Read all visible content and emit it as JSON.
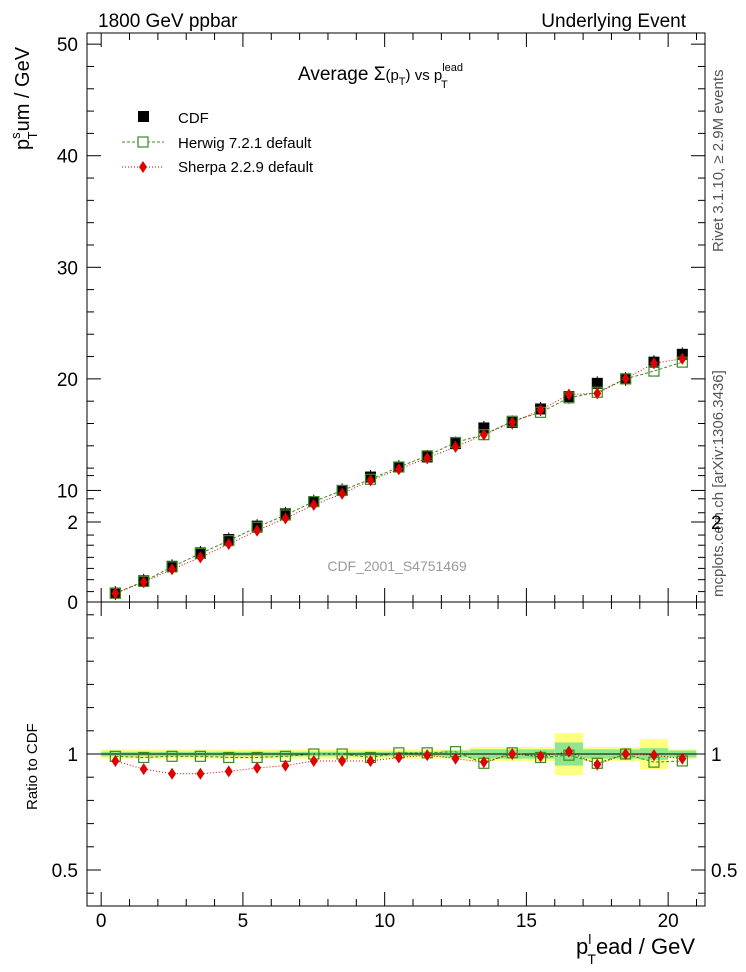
{
  "header": {
    "left": "1800 GeV ppbar",
    "right": "Underlying Event"
  },
  "side_labels": {
    "rivet": "Rivet 3.1.10, ≥ 2.9M events",
    "mcplots": "mcplots.cern.ch [arXiv:1306.3436]"
  },
  "chart_data": [
    {
      "type": "scatter",
      "panel": "main",
      "title": {
        "prefix": "Average ",
        "sigma": "Σ",
        "paren_open": "(p",
        "paren_sub": "T",
        "paren_close": ")",
        "vs": " vs p",
        "vs_sup": "lead",
        "vs_sub": "T"
      },
      "ylabel": {
        "base": "p",
        "sup": "s",
        "sub": "T",
        "rest": "um / GeV"
      },
      "xlim": [
        -0.5,
        21.3
      ],
      "ylim": [
        0,
        51
      ],
      "x_ticks": [
        0,
        5,
        10,
        15,
        20
      ],
      "y_ticks": [
        0,
        10,
        20,
        30,
        40,
        50
      ],
      "y_tick_labels": [
        "0",
        "10",
        "20",
        "30",
        "40",
        "50"
      ],
      "watermark": "CDF_2001_S4751469",
      "x": [
        0.5,
        1.5,
        2.5,
        3.5,
        4.5,
        5.5,
        6.5,
        7.5,
        8.5,
        9.5,
        10.5,
        11.5,
        12.5,
        13.5,
        14.5,
        15.5,
        16.5,
        17.5,
        18.5,
        19.5,
        20.5
      ],
      "series": [
        {
          "name": "CDF",
          "color": "#000000",
          "marker": "filled-square",
          "line": "none",
          "values": [
            0.8,
            1.9,
            3.2,
            4.4,
            5.6,
            6.8,
            7.9,
            9.0,
            10.0,
            11.2,
            12.1,
            13.0,
            14.2,
            15.6,
            16.1,
            17.3,
            18.4,
            19.6,
            20.0,
            21.5,
            22.2
          ]
        },
        {
          "name": "Herwig 7.2.1 default",
          "color": "#3a8a1e",
          "marker": "open-square",
          "line": "dashed",
          "values": [
            0.78,
            1.85,
            3.15,
            4.35,
            5.5,
            6.7,
            7.8,
            9.0,
            10.0,
            11.0,
            12.1,
            13.1,
            14.3,
            15.0,
            16.2,
            17.0,
            18.3,
            18.8,
            20.0,
            20.7,
            21.5
          ]
        },
        {
          "name": "Sherpa 2.2.9 default",
          "color": "#e00000",
          "marker": "filled-diamond",
          "line": "dotted",
          "values": [
            0.77,
            1.78,
            2.93,
            4.0,
            5.2,
            6.4,
            7.5,
            8.7,
            9.7,
            10.9,
            11.9,
            12.9,
            13.9,
            15.0,
            16.1,
            17.2,
            18.6,
            18.7,
            20.0,
            21.4,
            21.8
          ]
        }
      ]
    },
    {
      "type": "line",
      "panel": "ratio",
      "ylabel": "Ratio to CDF",
      "xlabel": {
        "base": "p",
        "sup": "l",
        "sub": "T",
        "rest": "ead / GeV"
      },
      "xlim": [
        -0.5,
        21.3
      ],
      "ylim": [
        0.35,
        2.3
      ],
      "x_ticks": [
        0,
        5,
        10,
        15,
        20
      ],
      "x_tick_labels": [
        "0",
        "5",
        "10",
        "15",
        "20"
      ],
      "y_ticks": [
        0.5,
        1,
        2
      ],
      "y_tick_labels": [
        "0.5",
        "1",
        "2"
      ],
      "x": [
        0.5,
        1.5,
        2.5,
        3.5,
        4.5,
        5.5,
        6.5,
        7.5,
        8.5,
        9.5,
        10.5,
        11.5,
        12.5,
        13.5,
        14.5,
        15.5,
        16.5,
        17.5,
        18.5,
        19.5,
        20.5
      ],
      "band_1sigma": [
        0.01,
        0.01,
        0.01,
        0.01,
        0.01,
        0.01,
        0.01,
        0.01,
        0.01,
        0.01,
        0.01,
        0.01,
        0.015,
        0.02,
        0.02,
        0.02,
        0.05,
        0.02,
        0.02,
        0.025,
        0.015
      ],
      "band_total": [
        0.02,
        0.02,
        0.02,
        0.02,
        0.02,
        0.02,
        0.02,
        0.02,
        0.02,
        0.02,
        0.02,
        0.02,
        0.02,
        0.03,
        0.03,
        0.03,
        0.09,
        0.03,
        0.03,
        0.065,
        0.02
      ],
      "series": [
        {
          "name": "Herwig 7.2.1 default",
          "color": "#3a8a1e",
          "marker": "open-square",
          "line": "dashed",
          "values": [
            0.99,
            0.985,
            0.99,
            0.99,
            0.985,
            0.985,
            0.99,
            1.0,
            1.0,
            0.985,
            1.005,
            1.005,
            1.01,
            0.96,
            1.005,
            0.985,
            0.995,
            0.96,
            1.0,
            0.965,
            0.97
          ]
        },
        {
          "name": "Sherpa 2.2.9 default",
          "color": "#e00000",
          "marker": "filled-diamond",
          "line": "dotted",
          "values": [
            0.97,
            0.935,
            0.915,
            0.915,
            0.925,
            0.94,
            0.95,
            0.97,
            0.97,
            0.97,
            0.985,
            0.995,
            0.98,
            0.965,
            1.0,
            0.99,
            1.01,
            0.955,
            1.0,
            0.995,
            0.98
          ]
        }
      ]
    }
  ]
}
